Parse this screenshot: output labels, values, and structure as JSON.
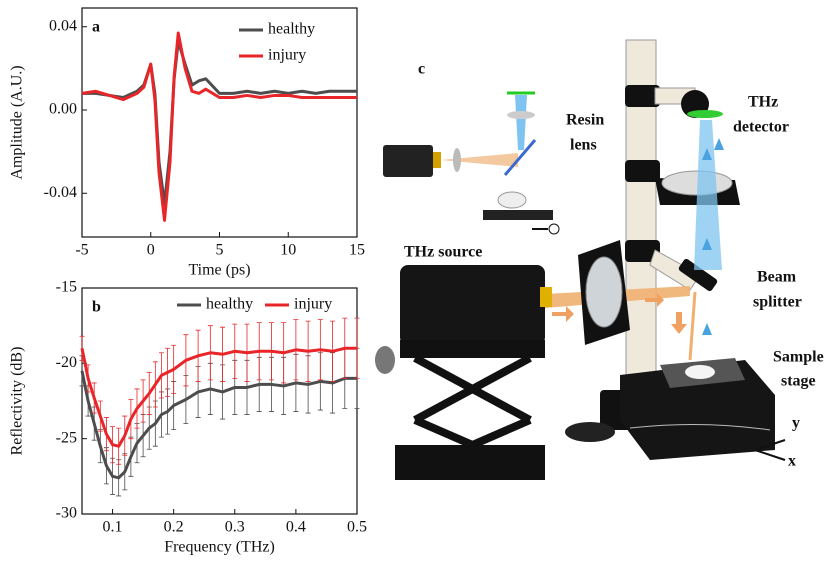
{
  "chart_data": [
    {
      "type": "line",
      "label": "a",
      "xlabel": "Time (ps)",
      "ylabel": "Amplitude (A.U.)",
      "x": [
        -5,
        -4,
        -3,
        -2,
        -1,
        -0.5,
        0,
        0.3,
        0.6,
        1,
        1.4,
        1.7,
        2,
        2.5,
        3,
        3.5,
        4,
        5,
        6,
        7,
        8,
        9,
        10,
        11,
        12,
        13,
        14,
        15
      ],
      "series": [
        {
          "name": "healthy",
          "color": "#4d4d4d",
          "values": [
            0.008,
            0.008,
            0.007,
            0.006,
            0.009,
            0.012,
            0.022,
            0.008,
            -0.025,
            -0.045,
            -0.02,
            0.015,
            0.033,
            0.022,
            0.012,
            0.014,
            0.015,
            0.008,
            0.008,
            0.009,
            0.008,
            0.009,
            0.008,
            0.009,
            0.008,
            0.009,
            0.009,
            0.009
          ]
        },
        {
          "name": "injury",
          "color": "#e8262a",
          "values": [
            0.008,
            0.009,
            0.007,
            0.005,
            0.008,
            0.011,
            0.022,
            0.005,
            -0.03,
            -0.053,
            -0.025,
            0.016,
            0.037,
            0.02,
            0.009,
            0.008,
            0.01,
            0.006,
            0.006,
            0.007,
            0.006,
            0.007,
            0.007,
            0.006,
            0.006,
            0.006,
            0.006,
            0.006
          ]
        }
      ],
      "xlim": [
        -5,
        15
      ],
      "xticks": [
        -5,
        0,
        5,
        10,
        15
      ],
      "ylim": [
        -0.061,
        0.049
      ],
      "yticks": [
        -0.04,
        {
          "value": 0,
          "label": "0.00"
        },
        0.04
      ],
      "legend": "upper right"
    },
    {
      "type": "errorbar",
      "label": "b",
      "xlabel": "Frequency (THz)",
      "ylabel": "Reflectivity (dB)",
      "x": [
        0.05,
        0.06,
        0.07,
        0.08,
        0.09,
        0.1,
        0.11,
        0.12,
        0.13,
        0.14,
        0.15,
        0.16,
        0.17,
        0.18,
        0.19,
        0.2,
        0.22,
        0.24,
        0.26,
        0.28,
        0.3,
        0.32,
        0.34,
        0.36,
        0.38,
        0.4,
        0.42,
        0.44,
        0.46,
        0.48,
        0.5
      ],
      "series": [
        {
          "name": "healthy",
          "color": "#4d4d4d",
          "values": [
            -20.5,
            -22.5,
            -24,
            -25.5,
            -26.8,
            -27.5,
            -27.6,
            -27.2,
            -26.2,
            -25.3,
            -24.8,
            -24.3,
            -24,
            -23.4,
            -23.2,
            -22.8,
            -22.4,
            -21.9,
            -21.7,
            -21.9,
            -21.6,
            -21.6,
            -21.4,
            -21.4,
            -21.5,
            -21.3,
            -21.4,
            -21.2,
            -21.3,
            -21,
            -21
          ],
          "errors": [
            1.0,
            1.0,
            1.1,
            1.1,
            1.2,
            1.2,
            1.2,
            1.2,
            1.3,
            1.3,
            1.4,
            1.4,
            1.5,
            1.5,
            1.5,
            1.6,
            1.6,
            1.7,
            1.7,
            1.8,
            1.8,
            1.8,
            1.8,
            1.8,
            1.9,
            1.9,
            1.9,
            1.9,
            2.0,
            2.0,
            2.0
          ]
        },
        {
          "name": "injury",
          "color": "#e8262a",
          "values": [
            -19,
            -21,
            -22.3,
            -23.5,
            -24.7,
            -25.4,
            -25.5,
            -24.8,
            -23.7,
            -23,
            -22.5,
            -22,
            -21.4,
            -20.8,
            -20.6,
            -20.4,
            -19.8,
            -19.5,
            -19.3,
            -19.4,
            -19.2,
            -19.3,
            -19.2,
            -19.2,
            -19.3,
            -19.1,
            -19.2,
            -19.1,
            -19.2,
            -19,
            -19
          ],
          "errors": [
            0.8,
            0.9,
            1.0,
            1.0,
            1.1,
            1.2,
            1.2,
            1.3,
            1.3,
            1.3,
            1.4,
            1.4,
            1.5,
            1.5,
            1.6,
            1.6,
            1.7,
            1.7,
            1.8,
            1.8,
            1.8,
            1.9,
            1.9,
            1.9,
            2.0,
            2.0,
            2.0,
            2.0,
            2.0,
            2.0,
            2.0
          ]
        }
      ],
      "xlim": [
        0.05,
        0.5
      ],
      "xticks": [
        0.1,
        0.2,
        0.3,
        0.4,
        0.5
      ],
      "ylim": [
        -30,
        -15
      ],
      "yticks": [
        -30,
        -25,
        -20,
        -15
      ],
      "legend": "upper center"
    }
  ],
  "illustration": {
    "label": "c",
    "callouts": {
      "resin_lens": [
        "Resin",
        "lens"
      ],
      "detector": [
        "THz",
        "detector"
      ],
      "source": "THz  source",
      "splitter": [
        "Beam",
        "splitter"
      ],
      "stage": [
        "Sample",
        "stage"
      ],
      "axis_y": "y",
      "axis_x": "x"
    }
  }
}
